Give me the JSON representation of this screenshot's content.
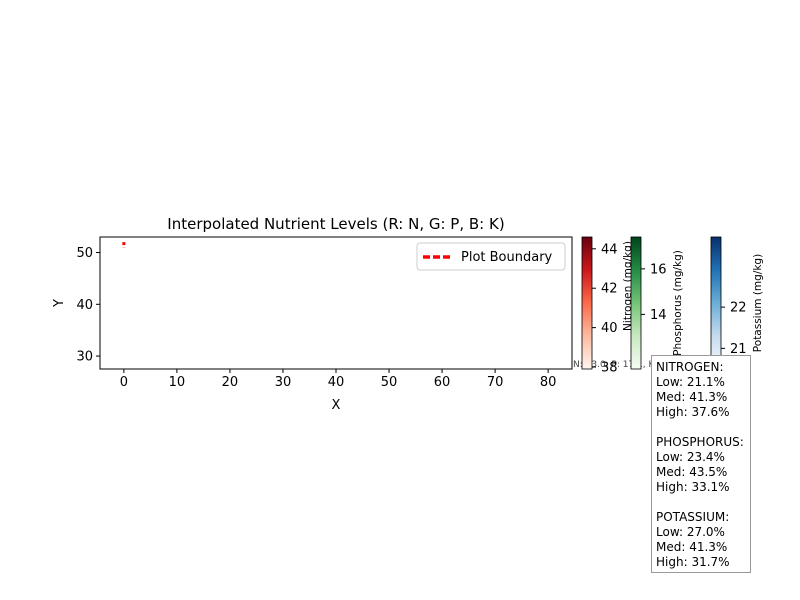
{
  "chart_data": {
    "type": "heatmap",
    "title": "Interpolated Nutrient Levels (R: N, G: P, B: K)",
    "xlabel": "X",
    "ylabel": "Y",
    "xlim": [
      -4.5,
      84.5
    ],
    "ylim": [
      27.5,
      53
    ],
    "x_ticks": [
      0,
      10,
      20,
      30,
      40,
      50,
      60,
      70,
      80
    ],
    "y_ticks": [
      30,
      40,
      50
    ],
    "legend": {
      "label": "Plot Boundary",
      "placement": "top-right",
      "color": "#ff0000",
      "style": "dashed"
    },
    "boundary_segment": {
      "x": [
        0,
        0
      ],
      "y": [
        51,
        52
      ]
    },
    "colorbars": [
      {
        "name": "nitrogen",
        "label": "Nitrogen (mg/kg)",
        "cmap": "Reds",
        "range": [
          37.9,
          44.6
        ],
        "ticks": [
          38,
          40,
          42,
          44
        ]
      },
      {
        "name": "phosphorus",
        "label": "Phosphorus (mg/kg)",
        "cmap": "Greens",
        "range": [
          11.6,
          17.4
        ],
        "ticks": [
          14,
          16
        ]
      },
      {
        "name": "potassium",
        "label": "Potassium (mg/kg)",
        "cmap": "Blues",
        "range": [
          20.5,
          23.7
        ],
        "ticks": [
          21,
          22
        ]
      }
    ],
    "annotation": "N: 43.0, P: 17.1, K: 21.0"
  },
  "stats_lines": [
    "NITROGEN:",
    "Low: 21.1%",
    "Med: 41.3%",
    "High: 37.6%",
    "",
    "PHOSPHORUS:",
    "Low: 23.4%",
    "Med: 43.5%",
    "High: 33.1%",
    "",
    "POTASSIUM:",
    "Low: 27.0%",
    "Med: 41.3%",
    "High: 31.7%"
  ],
  "colors": {
    "boundary": "#ff0000",
    "reds_dark": "#67000d",
    "greens_dark": "#00441b",
    "blues_dark": "#08306b"
  }
}
